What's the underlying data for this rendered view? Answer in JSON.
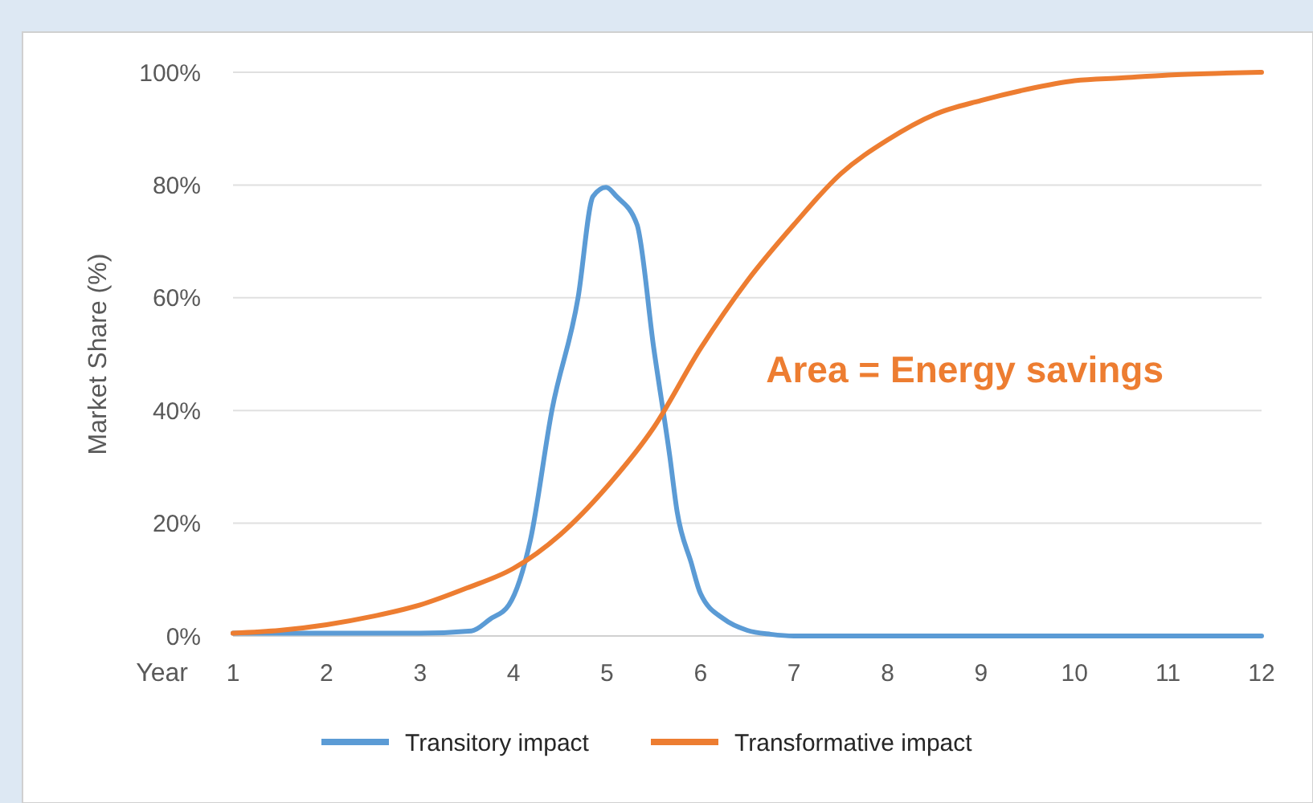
{
  "chart_data": {
    "type": "line",
    "xlabel": "Year",
    "ylabel": "Market Share (%)",
    "xlim": [
      1,
      12
    ],
    "xticks": [
      1,
      2,
      3,
      4,
      5,
      6,
      7,
      8,
      9,
      10,
      11,
      12
    ],
    "ylim": [
      0,
      100
    ],
    "yticks": [
      {
        "value": 0,
        "label": "0%"
      },
      {
        "value": 20,
        "label": "20%"
      },
      {
        "value": 40,
        "label": "40%"
      },
      {
        "value": 60,
        "label": "60%"
      },
      {
        "value": 80,
        "label": "80%"
      },
      {
        "value": 100,
        "label": "100%"
      }
    ],
    "grid": "y",
    "legend": "bottom",
    "marker": "none",
    "line_style": "solid",
    "annotations": [
      "Area = Energy savings"
    ],
    "series": [
      {
        "name": "Transitory impact",
        "color": "#5b9bd5",
        "x": [
          1,
          2,
          3,
          3.55,
          3.75,
          3.95,
          4.18,
          4.41,
          4.69,
          4.85,
          4.99,
          5.1,
          5.32,
          5.5,
          5.67,
          5.75,
          5.9,
          6,
          6.25,
          6.5,
          6.75,
          7,
          8,
          9,
          10,
          11,
          12
        ],
        "values": [
          0.5,
          0.5,
          0.5,
          0.9,
          3,
          5.5,
          17,
          40,
          60,
          78,
          79.6,
          78,
          73,
          51,
          32,
          22,
          13,
          7.5,
          3,
          1,
          0.3,
          0,
          0,
          0,
          0,
          0,
          0
        ]
      },
      {
        "name": "Transformative impact",
        "color": "#ed7d31",
        "x": [
          1,
          1.5,
          2,
          2.5,
          3,
          3.5,
          4,
          4.5,
          5,
          5.5,
          6,
          6.5,
          7,
          7.5,
          8,
          8.5,
          9,
          9.5,
          10,
          10.5,
          11,
          11.5,
          12
        ],
        "values": [
          0.5,
          1,
          2,
          3.5,
          5.5,
          8.5,
          12,
          18,
          26.5,
          37,
          51,
          63,
          73,
          82,
          88,
          92.5,
          95,
          97,
          98.5,
          99,
          99.5,
          99.8,
          100
        ]
      }
    ]
  }
}
